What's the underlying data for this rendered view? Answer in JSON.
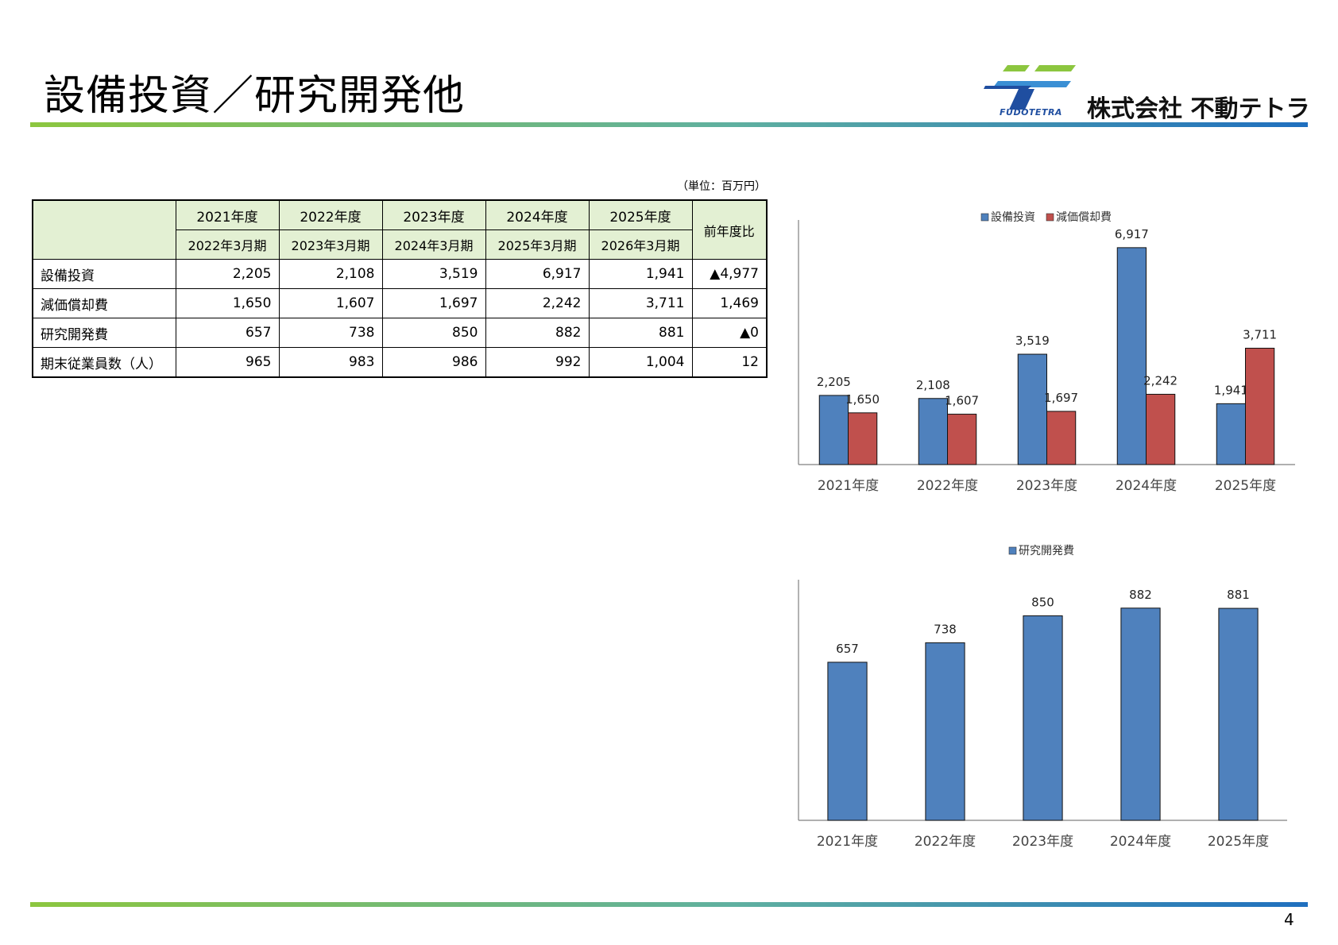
{
  "page": {
    "title": "設備投資／研究開発他",
    "page_number": "4",
    "unit_note": "（単位：百万円）"
  },
  "logo": {
    "brand_latin": "FUDOTETRA",
    "company_name": "株式会社 不動テトラ",
    "colors": {
      "green": "#8cc63f",
      "blue": "#1f4ea0",
      "light_blue": "#3a8fd4"
    }
  },
  "table": {
    "fiscal_years": [
      "2021年度",
      "2022年度",
      "2023年度",
      "2024年度",
      "2025年度"
    ],
    "periods": [
      "2022年3月期",
      "2023年3月期",
      "2024年3月期",
      "2025年3月期",
      "2026年3月期"
    ],
    "yoy_header": "前年度比",
    "rows": [
      {
        "label": "設備投資",
        "values": [
          "2,205",
          "2,108",
          "3,519",
          "6,917",
          "1,941"
        ],
        "yoy": "▲4,977"
      },
      {
        "label": "減価償却費",
        "values": [
          "1,650",
          "1,607",
          "1,697",
          "2,242",
          "3,711"
        ],
        "yoy": "1,469"
      },
      {
        "label": "研究開発費",
        "values": [
          "657",
          "738",
          "850",
          "882",
          "881"
        ],
        "yoy": "▲0"
      },
      {
        "label": "期末従業員数（人）",
        "values": [
          "965",
          "983",
          "986",
          "992",
          "1,004"
        ],
        "yoy": "12"
      }
    ]
  },
  "chart_data": [
    {
      "type": "bar",
      "categories": [
        "2021年度",
        "2022年度",
        "2023年度",
        "2024年度",
        "2025年度"
      ],
      "series": [
        {
          "name": "設備投資",
          "values": [
            2205,
            2108,
            3519,
            6917,
            1941
          ],
          "labels": [
            "2,205",
            "2,108",
            "3,519",
            "6,917",
            "1,941"
          ],
          "color": "#4f81bd"
        },
        {
          "name": "減価償却費",
          "values": [
            1650,
            1607,
            1697,
            2242,
            3711
          ],
          "labels": [
            "1,650",
            "1,607",
            "1,697",
            "2,242",
            "3,711"
          ],
          "color": "#c0504d"
        }
      ],
      "title": "",
      "xlabel": "",
      "ylabel": "",
      "ylim": [
        0,
        7800
      ],
      "grid": false,
      "legend": "top-center"
    },
    {
      "type": "bar",
      "categories": [
        "2021年度",
        "2022年度",
        "2023年度",
        "2024年度",
        "2025年度"
      ],
      "series": [
        {
          "name": "研究開発費",
          "values": [
            657,
            738,
            850,
            882,
            881
          ],
          "labels": [
            "657",
            "738",
            "850",
            "882",
            "881"
          ],
          "color": "#4f81bd"
        }
      ],
      "title": "",
      "xlabel": "",
      "ylabel": "",
      "ylim": [
        0,
        1000
      ],
      "grid": false,
      "legend": "top-center"
    }
  ]
}
